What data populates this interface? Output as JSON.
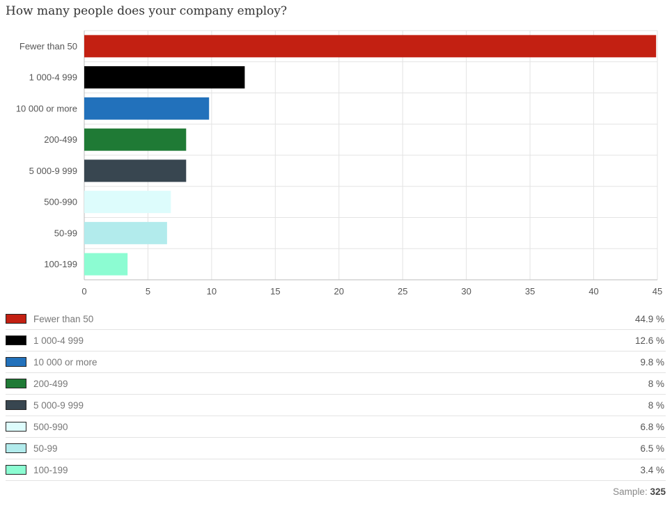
{
  "question": "How many people does your company employ?",
  "chart_data": {
    "type": "bar",
    "orientation": "horizontal",
    "categories": [
      "Fewer than 50",
      "1 000-4 999",
      "10 000 or more",
      "200-499",
      "5 000-9 999",
      "500-990",
      "50-99",
      "100-199"
    ],
    "values": [
      44.9,
      12.6,
      9.8,
      8,
      8,
      6.8,
      6.5,
      3.4
    ],
    "colors": [
      "#c32012",
      "#000000",
      "#2271bb",
      "#1f7a35",
      "#384650",
      "#ddfcfc",
      "#b2ebec",
      "#8cfcd2"
    ],
    "xlim": [
      0,
      45
    ],
    "xticks": [
      0,
      5,
      10,
      15,
      20,
      25,
      30,
      35,
      40,
      45
    ],
    "grid": true,
    "legend": "bottom"
  },
  "legend": {
    "items": [
      {
        "label": "Fewer than 50",
        "value": "44.9 %"
      },
      {
        "label": "1 000-4 999",
        "value": "12.6 %"
      },
      {
        "label": "10 000 or more",
        "value": "9.8 %"
      },
      {
        "label": "200-499",
        "value": "8 %"
      },
      {
        "label": "5 000-9 999",
        "value": "8 %"
      },
      {
        "label": "500-990",
        "value": "6.8 %"
      },
      {
        "label": "50-99",
        "value": "6.5 %"
      },
      {
        "label": "100-199",
        "value": "3.4 %"
      }
    ]
  },
  "sample": {
    "label": "Sample:",
    "value": "325"
  }
}
